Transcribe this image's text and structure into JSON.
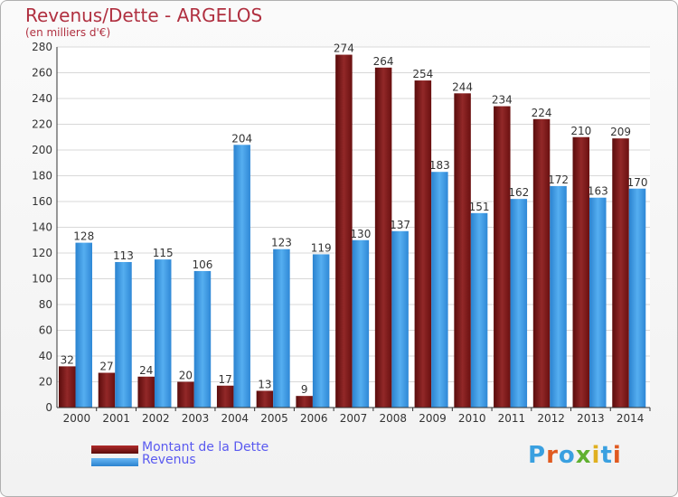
{
  "chart_data": {
    "type": "bar",
    "title": "Revenus/Dette - ARGELOS",
    "subtitle": "(en milliers d'€)",
    "categories": [
      "2000",
      "2001",
      "2002",
      "2003",
      "2004",
      "2005",
      "2006",
      "2007",
      "2008",
      "2009",
      "2010",
      "2011",
      "2012",
      "2013",
      "2014"
    ],
    "series": [
      {
        "name": "Montant de la Dette",
        "color": "#8b1a1a",
        "values": [
          32,
          27,
          24,
          20,
          17,
          13,
          9,
          274,
          264,
          254,
          244,
          234,
          224,
          210,
          209
        ]
      },
      {
        "name": "Revenus",
        "color": "#3f9be6",
        "values": [
          128,
          113,
          115,
          106,
          204,
          123,
          119,
          130,
          137,
          183,
          151,
          162,
          172,
          163,
          170
        ]
      }
    ],
    "ylim": [
      0,
      280
    ],
    "yticks": [
      0,
      20,
      40,
      60,
      80,
      100,
      120,
      140,
      160,
      180,
      200,
      220,
      240,
      260,
      280
    ],
    "grid": true,
    "legend": "bottom-left"
  },
  "logo": {
    "text": "Proxiti"
  }
}
